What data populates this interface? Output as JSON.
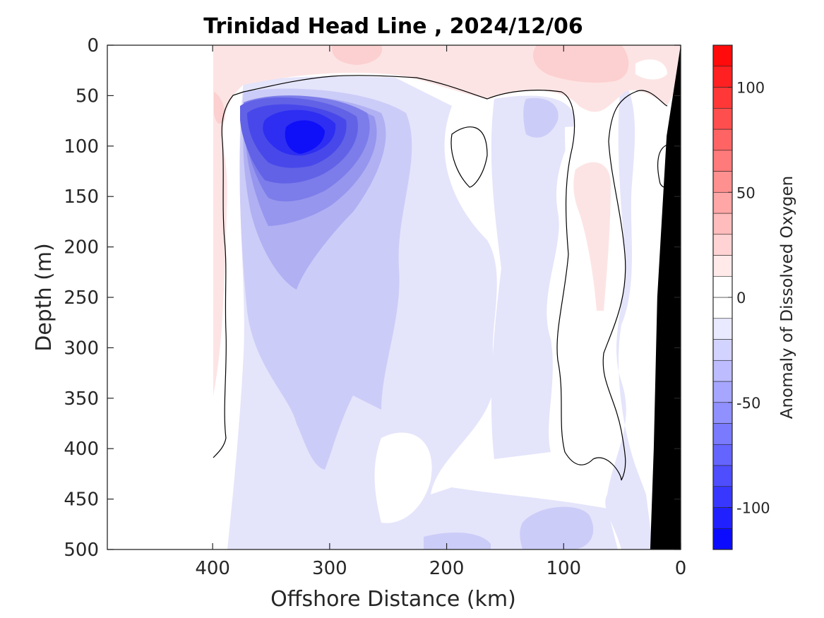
{
  "chart_data": {
    "type": "heatmap",
    "title": "Trinidad Head Line , 2024/12/06",
    "xlabel": "Offshore Distance (km)",
    "ylabel": "Depth (m)",
    "xlim": [
      490,
      0
    ],
    "ylim": [
      0,
      500
    ],
    "x_reversed": true,
    "y_reversed": true,
    "xticks": [
      400,
      300,
      200,
      100,
      0
    ],
    "yticks": [
      0,
      50,
      100,
      150,
      200,
      250,
      300,
      350,
      400,
      450,
      500
    ],
    "colorbar": {
      "label": "Anomaly of Dissolved Oxygen",
      "range": [
        -120,
        120
      ],
      "ticks": [
        100,
        50,
        0,
        -50,
        -100
      ],
      "level_step": 10,
      "colors": {
        "negative": "#0000ff",
        "zero": "#ffffff",
        "positive": "#ff0000"
      }
    },
    "data_extent_km": [
      400,
      0
    ],
    "zero_contour": "thin black line",
    "bathymetry_color": "#000000",
    "bathymetry": [
      {
        "x": 0,
        "depth": 0
      },
      {
        "x": 12,
        "depth": 90
      },
      {
        "x": 20,
        "depth": 250
      },
      {
        "x": 23,
        "depth": 400
      },
      {
        "x": 26,
        "depth": 500
      }
    ],
    "anomaly_features": [
      {
        "label": "low-oxygen core",
        "x": 318,
        "depth": 95,
        "value": -110
      },
      {
        "label": "surface positive",
        "x": 275,
        "depth": 10,
        "value": 12
      },
      {
        "label": "surface positive",
        "x": 60,
        "depth": 20,
        "value": 20
      },
      {
        "label": "coastal positive",
        "x": 85,
        "depth": 180,
        "value": 15
      }
    ]
  }
}
